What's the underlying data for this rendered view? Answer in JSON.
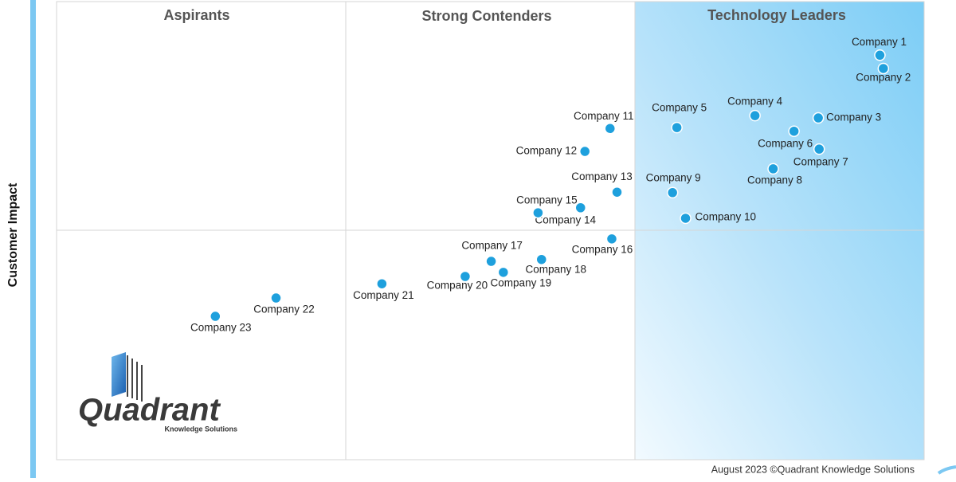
{
  "chart_data": {
    "type": "scatter",
    "y_label": "Customer Impact",
    "quadrants": [
      "Aspirants",
      "Strong Contenders",
      "Technology Leaders"
    ],
    "labels": [
      "Company 1",
      "Company 2",
      "Company 3",
      "Company 4",
      "Company 5",
      "Company 6",
      "Company 7",
      "Company 8",
      "Company 9",
      "Company 10",
      "Company 11",
      "Company 12",
      "Company 13",
      "Company 14",
      "Company 15",
      "Company 16",
      "Company 17",
      "Company 18",
      "Company 19",
      "Company 20",
      "Company 21",
      "Company 22",
      "Company 23"
    ],
    "x": [
      94.9,
      95.3,
      87.8,
      80.5,
      71.5,
      85.0,
      87.9,
      82.6,
      71.0,
      72.5,
      63.8,
      60.9,
      64.6,
      60.4,
      55.5,
      64.0,
      50.1,
      55.9,
      51.5,
      47.1,
      37.5,
      25.3,
      18.3
    ],
    "values": [
      88.3,
      85.4,
      74.6,
      75.1,
      72.5,
      71.7,
      67.8,
      63.5,
      58.3,
      52.7,
      72.3,
      67.3,
      58.4,
      55.0,
      53.9,
      48.2,
      43.3,
      43.7,
      40.9,
      40.0,
      38.4,
      35.3,
      31.3
    ],
    "color": "#1ea0dd",
    "xlim": [
      0,
      100
    ],
    "ylim": [
      0,
      100
    ],
    "footer": "August 2023 ©Quadrant Knowledge Solutions"
  },
  "logo": {
    "name": "Quadrant",
    "tagline": "Knowledge Solutions"
  }
}
